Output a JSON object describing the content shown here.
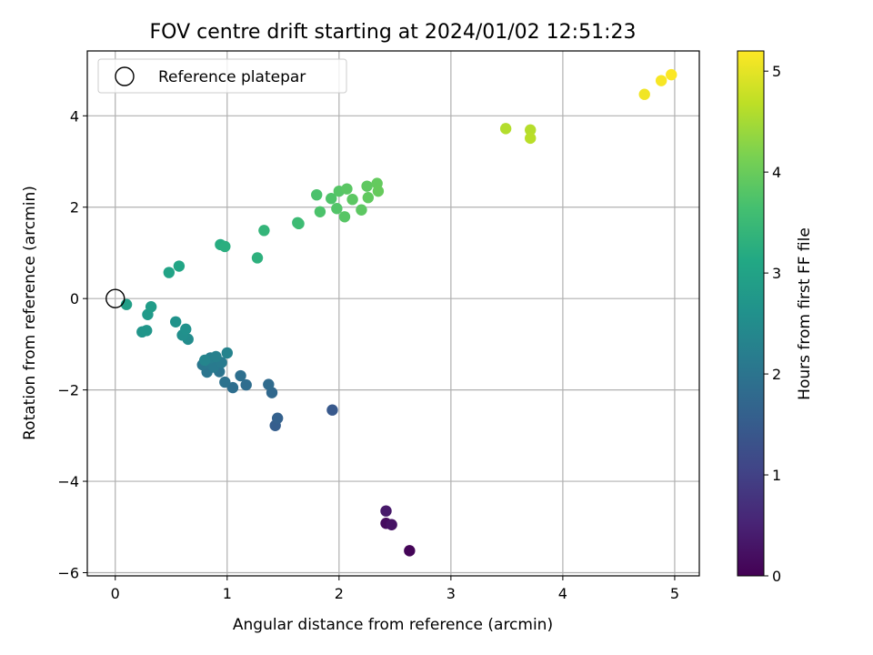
{
  "chart_data": {
    "type": "scatter",
    "title": "FOV centre drift starting at 2024/01/02 12:51:23",
    "xlabel": "Angular distance from reference (arcmin)",
    "ylabel": "Rotation from reference (arcmin)",
    "xlim": [
      -0.25,
      5.22
    ],
    "ylim": [
      -6.07,
      5.42
    ],
    "xticks": [
      0,
      1,
      2,
      3,
      4,
      5
    ],
    "xtick_labels": [
      "0",
      "1",
      "2",
      "3",
      "4",
      "5"
    ],
    "yticks": [
      -6,
      -4,
      -2,
      0,
      2,
      4
    ],
    "ytick_labels": [
      "−6",
      "−4",
      "−2",
      "0",
      "2",
      "4"
    ],
    "grid": true,
    "legend": {
      "position": "top-left",
      "entries": [
        "Reference platepar"
      ]
    },
    "reference_point": {
      "x": 0,
      "y": 0
    },
    "colorbar": {
      "label": "Hours from first FF file",
      "range": [
        0,
        5.2
      ],
      "ticks": [
        0,
        1,
        2,
        3,
        4,
        5
      ],
      "tick_labels": [
        "0",
        "1",
        "2",
        "3",
        "4",
        "5"
      ],
      "colormap": "viridis"
    },
    "points": [
      {
        "x": 2.63,
        "y": -5.52,
        "c": 0.05
      },
      {
        "x": 2.42,
        "y": -4.92,
        "c": 0.15
      },
      {
        "x": 2.47,
        "y": -4.95,
        "c": 0.25
      },
      {
        "x": 2.42,
        "y": -4.65,
        "c": 0.35
      },
      {
        "x": 1.94,
        "y": -2.44,
        "c": 1.45
      },
      {
        "x": 1.43,
        "y": -2.78,
        "c": 1.55
      },
      {
        "x": 1.45,
        "y": -2.62,
        "c": 1.6
      },
      {
        "x": 1.4,
        "y": -2.06,
        "c": 1.75
      },
      {
        "x": 1.37,
        "y": -1.88,
        "c": 1.8
      },
      {
        "x": 1.17,
        "y": -1.89,
        "c": 1.85
      },
      {
        "x": 1.12,
        "y": -1.69,
        "c": 1.9
      },
      {
        "x": 1.05,
        "y": -1.95,
        "c": 1.88
      },
      {
        "x": 0.98,
        "y": -1.83,
        "c": 1.95
      },
      {
        "x": 0.93,
        "y": -1.6,
        "c": 2.0
      },
      {
        "x": 0.82,
        "y": -1.61,
        "c": 2.02
      },
      {
        "x": 0.78,
        "y": -1.45,
        "c": 2.05
      },
      {
        "x": 0.83,
        "y": -1.4,
        "c": 2.1
      },
      {
        "x": 0.88,
        "y": -1.5,
        "c": 2.12
      },
      {
        "x": 0.95,
        "y": -1.4,
        "c": 2.15
      },
      {
        "x": 0.85,
        "y": -1.3,
        "c": 2.2
      },
      {
        "x": 0.9,
        "y": -1.27,
        "c": 2.25
      },
      {
        "x": 1.0,
        "y": -1.19,
        "c": 2.3
      },
      {
        "x": 0.8,
        "y": -1.35,
        "c": 2.35
      },
      {
        "x": 0.65,
        "y": -0.89,
        "c": 2.5
      },
      {
        "x": 0.6,
        "y": -0.8,
        "c": 2.55
      },
      {
        "x": 0.63,
        "y": -0.67,
        "c": 2.6
      },
      {
        "x": 0.54,
        "y": -0.51,
        "c": 2.65
      },
      {
        "x": 0.24,
        "y": -0.73,
        "c": 2.7
      },
      {
        "x": 0.28,
        "y": -0.7,
        "c": 2.72
      },
      {
        "x": 0.29,
        "y": -0.35,
        "c": 2.8
      },
      {
        "x": 0.32,
        "y": -0.18,
        "c": 2.85
      },
      {
        "x": 0.1,
        "y": -0.13,
        "c": 2.9
      },
      {
        "x": 0.48,
        "y": 0.57,
        "c": 3.0
      },
      {
        "x": 0.57,
        "y": 0.71,
        "c": 3.05
      },
      {
        "x": 0.94,
        "y": 1.18,
        "c": 3.2
      },
      {
        "x": 0.98,
        "y": 1.14,
        "c": 3.25
      },
      {
        "x": 1.27,
        "y": 0.89,
        "c": 3.3
      },
      {
        "x": 1.33,
        "y": 1.49,
        "c": 3.4
      },
      {
        "x": 1.63,
        "y": 1.66,
        "c": 3.5
      },
      {
        "x": 1.64,
        "y": 1.64,
        "c": 3.55
      },
      {
        "x": 1.8,
        "y": 2.27,
        "c": 3.7
      },
      {
        "x": 1.83,
        "y": 1.9,
        "c": 3.72
      },
      {
        "x": 1.93,
        "y": 2.19,
        "c": 3.75
      },
      {
        "x": 1.98,
        "y": 1.97,
        "c": 3.78
      },
      {
        "x": 2.0,
        "y": 2.35,
        "c": 3.8
      },
      {
        "x": 2.05,
        "y": 1.79,
        "c": 3.82
      },
      {
        "x": 2.07,
        "y": 2.4,
        "c": 3.85
      },
      {
        "x": 2.12,
        "y": 2.17,
        "c": 3.87
      },
      {
        "x": 2.2,
        "y": 1.94,
        "c": 3.88
      },
      {
        "x": 2.25,
        "y": 2.46,
        "c": 3.9
      },
      {
        "x": 2.26,
        "y": 2.21,
        "c": 3.92
      },
      {
        "x": 2.34,
        "y": 2.52,
        "c": 3.95
      },
      {
        "x": 2.35,
        "y": 2.35,
        "c": 3.97
      },
      {
        "x": 3.49,
        "y": 3.72,
        "c": 4.6
      },
      {
        "x": 3.71,
        "y": 3.69,
        "c": 4.62
      },
      {
        "x": 3.71,
        "y": 3.51,
        "c": 4.65
      },
      {
        "x": 4.73,
        "y": 4.47,
        "c": 5.1
      },
      {
        "x": 4.88,
        "y": 4.77,
        "c": 5.15
      },
      {
        "x": 4.97,
        "y": 4.9,
        "c": 5.18
      }
    ]
  }
}
